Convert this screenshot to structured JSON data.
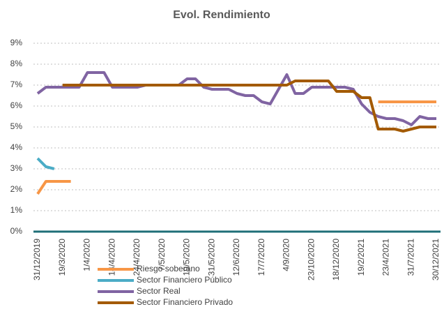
{
  "chart_data": {
    "type": "line",
    "title": "Evol. Rendimiento",
    "categories": [
      "31/12/2019",
      null,
      null,
      "19/3/2020",
      null,
      null,
      "1/4/2020",
      null,
      null,
      "14/4/2020",
      null,
      null,
      "24/4/2020",
      null,
      null,
      "7/5/2020",
      null,
      null,
      "19/5/2020",
      null,
      null,
      "31/5/2020",
      null,
      null,
      "12/6/2020",
      null,
      null,
      "17/7/2020",
      null,
      null,
      "4/9/2020",
      null,
      null,
      "23/10/2020",
      null,
      null,
      "18/12/2020",
      null,
      null,
      "19/2/2021",
      null,
      null,
      "23/4/2021",
      null,
      null,
      "31/7/2021",
      null,
      null,
      "30/12/2021"
    ],
    "series": [
      {
        "name": "Riesgo soberano",
        "color": "#f79646",
        "values": [
          1.8,
          2.4,
          2.4,
          2.4,
          2.4,
          null,
          null,
          null,
          null,
          null,
          null,
          null,
          null,
          null,
          null,
          null,
          null,
          null,
          null,
          null,
          null,
          null,
          null,
          null,
          null,
          null,
          null,
          null,
          null,
          null,
          null,
          null,
          null,
          null,
          null,
          null,
          null,
          null,
          null,
          null,
          null,
          6.2,
          6.2,
          6.2,
          6.2,
          6.2,
          6.2,
          6.2,
          6.2
        ]
      },
      {
        "name": "Sector Financiero Público",
        "color": "#4bacc6",
        "values": [
          3.5,
          3.1,
          3.0,
          null,
          null,
          null,
          null,
          null,
          null,
          null,
          null,
          null,
          null,
          null,
          null,
          null,
          null,
          null,
          null,
          null,
          null,
          null,
          null,
          null,
          null,
          null,
          null,
          null,
          null,
          null,
          null,
          null,
          null,
          null,
          null,
          null,
          null,
          null,
          null,
          null,
          null,
          null,
          null,
          null,
          null,
          null,
          null,
          null,
          null
        ]
      },
      {
        "name": "Sector Real",
        "color": "#8064a2",
        "values": [
          6.6,
          6.9,
          6.9,
          6.9,
          6.9,
          6.9,
          7.6,
          7.6,
          7.6,
          6.9,
          6.9,
          6.9,
          6.9,
          7.0,
          7.0,
          7.0,
          7.0,
          7.0,
          7.3,
          7.3,
          6.9,
          6.8,
          6.8,
          6.8,
          6.6,
          6.5,
          6.5,
          6.2,
          6.1,
          6.8,
          7.5,
          6.6,
          6.6,
          6.9,
          6.9,
          6.9,
          6.9,
          6.9,
          6.8,
          6.1,
          5.7,
          5.5,
          5.4,
          5.4,
          5.3,
          5.1,
          5.5,
          5.4,
          5.4
        ]
      },
      {
        "name": "Sector Financiero Privado",
        "color": "#a35a00",
        "values": [
          null,
          null,
          null,
          7.0,
          7.0,
          7.0,
          7.0,
          7.0,
          7.0,
          7.0,
          7.0,
          7.0,
          7.0,
          7.0,
          7.0,
          7.0,
          7.0,
          7.0,
          7.0,
          7.0,
          7.0,
          7.0,
          7.0,
          7.0,
          7.0,
          7.0,
          7.0,
          7.0,
          7.0,
          7.0,
          7.0,
          7.2,
          7.2,
          7.2,
          7.2,
          7.2,
          6.7,
          6.7,
          6.7,
          6.4,
          6.4,
          4.9,
          4.9,
          4.9,
          4.8,
          4.9,
          5.0,
          5.0,
          5.0
        ]
      }
    ],
    "ylim": [
      0,
      9
    ],
    "yticks": [
      {
        "value": 0,
        "label": "0%"
      },
      {
        "value": 1,
        "label": "1%"
      },
      {
        "value": 2,
        "label": "2%"
      },
      {
        "value": 3,
        "label": "3%"
      },
      {
        "value": 4,
        "label": "4%"
      },
      {
        "value": 5,
        "label": "5%"
      },
      {
        "value": 6,
        "label": "6%"
      },
      {
        "value": 7,
        "label": "7%"
      },
      {
        "value": 8,
        "label": "8%"
      },
      {
        "value": 9,
        "label": "9%"
      }
    ],
    "grid": true,
    "legend": "bottom"
  }
}
